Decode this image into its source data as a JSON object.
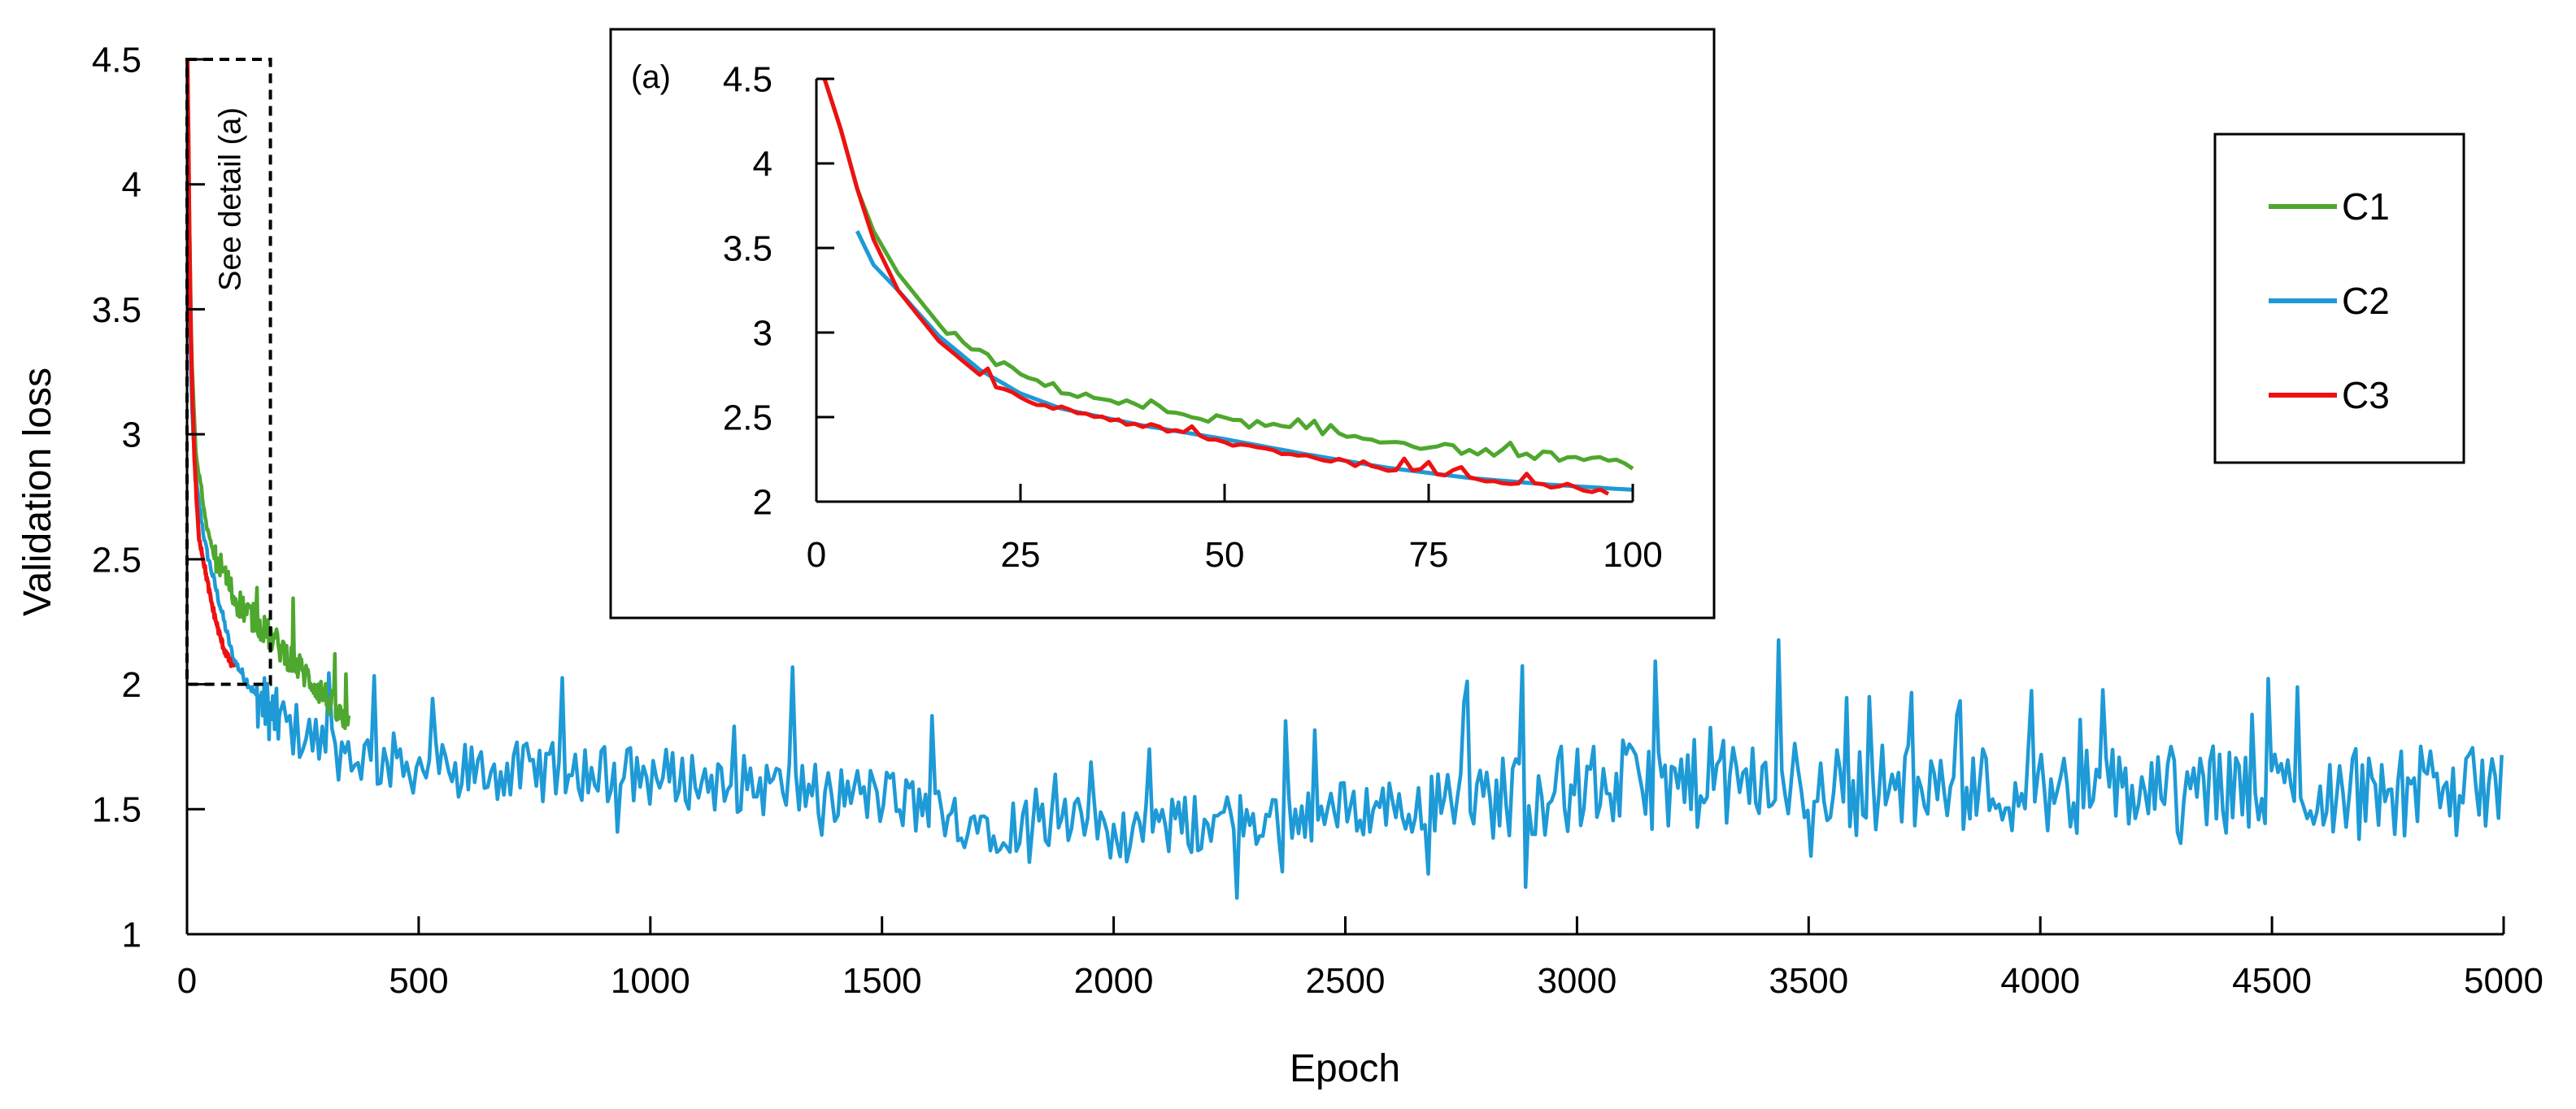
{
  "colors": {
    "C1": "#4ea72e",
    "C2": "#1e9ad6",
    "C3": "#ee1111",
    "axis": "#000000"
  },
  "chart_data": [
    {
      "id": "main",
      "type": "line",
      "title": "",
      "xlabel": "Epoch",
      "ylabel": "Validation loss",
      "xlim": [
        0,
        5000
      ],
      "ylim": [
        1,
        4.5
      ],
      "xticks": [
        0,
        500,
        1000,
        1500,
        2000,
        2500,
        3000,
        3500,
        4000,
        4500,
        5000
      ],
      "yticks": [
        1,
        1.5,
        2,
        2.5,
        3,
        3.5,
        4,
        4.5
      ],
      "grid": false,
      "annotation": {
        "label": "See detail (a)",
        "x_range": [
          0,
          180
        ],
        "y_range": [
          2,
          4.5
        ]
      },
      "series": [
        {
          "name": "C1",
          "x_max": 350,
          "keypoints": [
            [
              1,
              4.5
            ],
            [
              5,
              3.9
            ],
            [
              10,
              3.3
            ],
            [
              20,
              2.9
            ],
            [
              30,
              2.8
            ],
            [
              40,
              2.65
            ],
            [
              60,
              2.5
            ],
            [
              80,
              2.45
            ],
            [
              100,
              2.35
            ],
            [
              150,
              2.25
            ],
            [
              200,
              2.15
            ],
            [
              250,
              2.05
            ],
            [
              300,
              1.95
            ],
            [
              350,
              1.82
            ]
          ]
        },
        {
          "name": "C2",
          "x_max": 5000,
          "keypoints": [
            [
              5,
              3.6
            ],
            [
              10,
              3.1
            ],
            [
              20,
              2.8
            ],
            [
              40,
              2.55
            ],
            [
              60,
              2.4
            ],
            [
              100,
              2.1
            ],
            [
              150,
              1.95
            ],
            [
              200,
              1.85
            ],
            [
              300,
              1.75
            ],
            [
              400,
              1.7
            ],
            [
              600,
              1.65
            ],
            [
              900,
              1.65
            ],
            [
              1200,
              1.6
            ],
            [
              1500,
              1.55
            ],
            [
              1700,
              1.45
            ],
            [
              2000,
              1.42
            ],
            [
              2200,
              1.44
            ],
            [
              2500,
              1.5
            ],
            [
              2800,
              1.55
            ],
            [
              3100,
              1.6
            ],
            [
              3500,
              1.6
            ],
            [
              4000,
              1.58
            ],
            [
              4500,
              1.58
            ],
            [
              5000,
              1.57
            ]
          ]
        },
        {
          "name": "C3",
          "x_max": 100,
          "keypoints": [
            [
              1,
              4.5
            ],
            [
              3,
              4.2
            ],
            [
              5,
              3.85
            ],
            [
              7,
              3.55
            ],
            [
              10,
              3.25
            ],
            [
              15,
              2.95
            ],
            [
              20,
              2.75
            ],
            [
              25,
              2.6
            ],
            [
              30,
              2.55
            ],
            [
              40,
              2.45
            ],
            [
              50,
              2.35
            ],
            [
              60,
              2.27
            ],
            [
              70,
              2.2
            ],
            [
              80,
              2.14
            ],
            [
              90,
              2.1
            ],
            [
              100,
              2.06
            ]
          ]
        }
      ]
    },
    {
      "id": "inset",
      "type": "line",
      "label": "(a)",
      "xlim": [
        0,
        100
      ],
      "ylim": [
        2,
        4.5
      ],
      "xticks": [
        0,
        25,
        50,
        75,
        100
      ],
      "yticks": [
        2,
        2.5,
        3,
        3.5,
        4,
        4.5
      ],
      "series": [
        {
          "name": "C1",
          "keypoints": [
            [
              1,
              4.5
            ],
            [
              3,
              4.2
            ],
            [
              5,
              3.85
            ],
            [
              7,
              3.6
            ],
            [
              10,
              3.35
            ],
            [
              15,
              3.05
            ],
            [
              20,
              2.88
            ],
            [
              25,
              2.75
            ],
            [
              30,
              2.66
            ],
            [
              40,
              2.56
            ],
            [
              50,
              2.48
            ],
            [
              60,
              2.42
            ],
            [
              70,
              2.36
            ],
            [
              80,
              2.3
            ],
            [
              90,
              2.27
            ],
            [
              100,
              2.22
            ]
          ]
        },
        {
          "name": "C2",
          "keypoints": [
            [
              5,
              3.6
            ],
            [
              7,
              3.4
            ],
            [
              10,
              3.25
            ],
            [
              15,
              2.98
            ],
            [
              20,
              2.78
            ],
            [
              25,
              2.64
            ],
            [
              30,
              2.55
            ],
            [
              40,
              2.45
            ],
            [
              50,
              2.37
            ],
            [
              60,
              2.28
            ],
            [
              70,
              2.2
            ],
            [
              80,
              2.14
            ],
            [
              90,
              2.1
            ],
            [
              100,
              2.07
            ]
          ]
        },
        {
          "name": "C3",
          "keypoints": [
            [
              1,
              4.5
            ],
            [
              3,
              4.2
            ],
            [
              5,
              3.85
            ],
            [
              7,
              3.55
            ],
            [
              10,
              3.25
            ],
            [
              15,
              2.95
            ],
            [
              20,
              2.75
            ],
            [
              25,
              2.6
            ],
            [
              30,
              2.55
            ],
            [
              40,
              2.45
            ],
            [
              50,
              2.35
            ],
            [
              60,
              2.27
            ],
            [
              70,
              2.2
            ],
            [
              80,
              2.14
            ],
            [
              90,
              2.1
            ],
            [
              97,
              2.06
            ]
          ]
        }
      ]
    }
  ],
  "legend": {
    "position": "top-right",
    "items": [
      {
        "key": "C1",
        "label": "C1"
      },
      {
        "key": "C2",
        "label": "C2"
      },
      {
        "key": "C3",
        "label": "C3"
      }
    ]
  }
}
